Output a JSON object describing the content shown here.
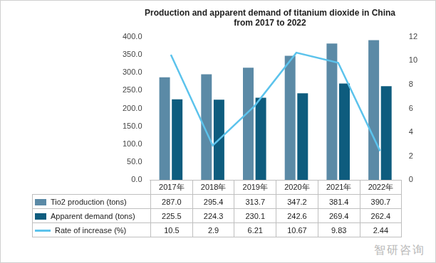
{
  "chart_data": {
    "type": "bar",
    "title": [
      "Production and apparent demand of titanium dioxide in China",
      "from 2017 to 2022"
    ],
    "categories": [
      "2017年",
      "2018年",
      "2019年",
      "2020年",
      "2021年",
      "2022年"
    ],
    "series": [
      {
        "name": "Tio2 production (tons)",
        "type": "bar",
        "color": "#5b8aa6",
        "values": [
          287.0,
          295.4,
          313.7,
          347.2,
          381.4,
          390.7
        ],
        "value_labels": [
          "287.0",
          "295.4",
          "313.7",
          "347.2",
          "381.4",
          "390.7"
        ]
      },
      {
        "name": "Apparent demand (tons)",
        "type": "bar",
        "color": "#0e5c7e",
        "values": [
          225.5,
          224.3,
          230.1,
          242.6,
          269.4,
          262.4
        ]
      },
      {
        "name": "Rate of increase (%)",
        "type": "line",
        "color": "#5cc3ec",
        "axis": "y2",
        "values": [
          10.5,
          2.9,
          6.21,
          10.67,
          9.83,
          2.44
        ]
      }
    ],
    "ylim": [
      0,
      400
    ],
    "yticks": [
      {
        "value": 0,
        "label": "0.0"
      },
      {
        "value": 50,
        "label": "50.0"
      },
      {
        "value": 100,
        "label": "100.0"
      },
      {
        "value": 150,
        "label": "150.0"
      },
      {
        "value": 200,
        "label": "200.0"
      },
      {
        "value": 250,
        "label": "250.0"
      },
      {
        "value": 300,
        "label": "300.0"
      },
      {
        "value": 350,
        "label": "350.0"
      },
      {
        "value": 400,
        "label": "400.0"
      }
    ],
    "y2lim": [
      0,
      12
    ],
    "y2ticks": [
      0,
      2,
      4,
      6,
      8,
      10,
      12
    ],
    "grid": false,
    "annotations": [
      "智研咨询"
    ]
  }
}
